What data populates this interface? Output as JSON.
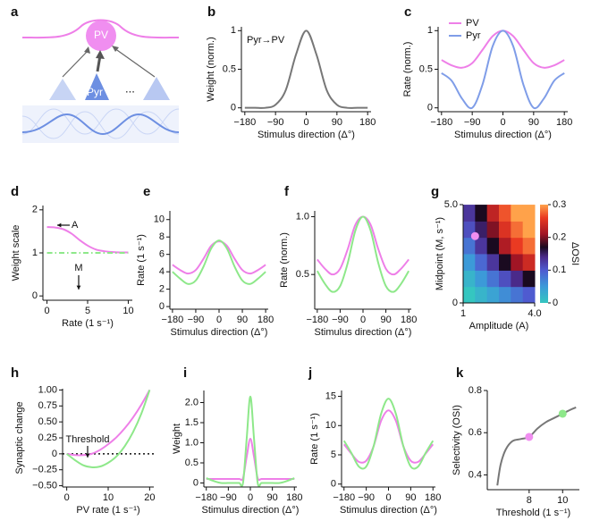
{
  "schematic": {
    "label": "a",
    "top_node": "PV",
    "input_node": "Pyr",
    "ellipsis": "..."
  },
  "chart_data": [
    {
      "type": "line",
      "label": "b",
      "annotations": [
        "Pyr→PV"
      ],
      "xlabel": "Stimulus direction (Δ°)",
      "ylabel": "Weight (norm.)",
      "x": [
        -180,
        -150,
        -120,
        -90,
        -60,
        -30,
        0,
        30,
        60,
        90,
        120,
        150,
        180
      ],
      "xlim": [
        -190,
        190
      ],
      "xticks": [
        {
          "value": -180,
          "label": "−180"
        },
        {
          "value": -90,
          "label": "−90"
        },
        0,
        90,
        180
      ],
      "ylim": [
        -0.05,
        1.05
      ],
      "yticks": [
        0,
        0.5,
        1
      ],
      "series": [
        {
          "color": "#777777",
          "values": [
            0,
            0,
            0,
            0.04,
            0.23,
            0.69,
            1,
            0.69,
            0.23,
            0.04,
            0,
            0,
            0
          ]
        }
      ]
    },
    {
      "type": "line",
      "label": "c",
      "xlabel": "Stimulus direction (Δ°)",
      "ylabel": "Rate (norm.)",
      "legend": "upper left",
      "x": [
        -180,
        -150,
        -120,
        -90,
        -60,
        -30,
        0,
        30,
        60,
        90,
        120,
        150,
        180
      ],
      "xlim": [
        -190,
        190
      ],
      "xticks": [
        {
          "value": -180,
          "label": "−180"
        },
        {
          "value": -90,
          "label": "−90"
        },
        0,
        90,
        180
      ],
      "ylim": [
        -0.05,
        1.05
      ],
      "yticks": [
        0,
        0.5,
        1
      ],
      "series": [
        {
          "name": "PV",
          "color": "#ee7fe8",
          "values": [
            0.62,
            0.55,
            0.52,
            0.58,
            0.75,
            0.93,
            1,
            0.93,
            0.75,
            0.58,
            0.52,
            0.55,
            0.62
          ]
        },
        {
          "name": "Pyr",
          "color": "#7f9de8",
          "values": [
            0.45,
            0.35,
            0.12,
            0,
            0.3,
            0.8,
            1,
            0.8,
            0.3,
            0,
            0.12,
            0.35,
            0.45
          ]
        }
      ]
    },
    {
      "type": "line",
      "label": "d",
      "annotations": [
        "A",
        "M"
      ],
      "xlabel": "Rate (1 s⁻¹)",
      "ylabel": "Weight scale",
      "x": [
        0,
        1,
        2,
        3,
        4,
        5,
        6,
        7,
        8,
        9,
        10
      ],
      "xlim": [
        -0.5,
        10.5
      ],
      "xticks": [
        0,
        5,
        10
      ],
      "ylim": [
        -0.1,
        2.1
      ],
      "yticks": [
        0,
        1,
        2
      ],
      "series": [
        {
          "color": "#ee7fe8",
          "values": [
            1.6,
            1.59,
            1.55,
            1.45,
            1.3,
            1.17,
            1.08,
            1.04,
            1.02,
            1.01,
            1.01
          ]
        },
        {
          "color": "#8ee88a",
          "dash": "dashdot",
          "values": [
            1,
            1,
            1,
            1,
            1,
            1,
            1,
            1,
            1,
            1,
            1
          ]
        }
      ]
    },
    {
      "type": "line",
      "label": "e",
      "xlabel": "Stimulus direction (Δ°)",
      "ylabel": "Rate (1 s⁻¹)",
      "x": [
        -180,
        -150,
        -120,
        -90,
        -60,
        -30,
        0,
        30,
        60,
        90,
        120,
        150,
        180
      ],
      "xlim": [
        -190,
        190
      ],
      "xticks": [
        {
          "value": -180,
          "label": "−180"
        },
        {
          "value": -90,
          "label": "−90"
        },
        0,
        90,
        180
      ],
      "ylim": [
        -0.3,
        11
      ],
      "yticks": [
        0,
        2,
        4,
        6,
        8,
        10
      ],
      "series": [
        {
          "color": "#ee7fe8",
          "values": [
            4.8,
            4.2,
            3.8,
            4.2,
            5.5,
            7.0,
            7.5,
            7.0,
            5.5,
            4.2,
            3.8,
            4.2,
            4.8
          ]
        },
        {
          "color": "#8ee88a",
          "values": [
            4.0,
            3.2,
            2.6,
            3.0,
            4.6,
            6.7,
            7.6,
            6.7,
            4.6,
            3.0,
            2.6,
            3.2,
            4.0
          ]
        }
      ]
    },
    {
      "type": "line",
      "label": "f",
      "xlabel": "Stimulus direction (Δ°)",
      "ylabel": "Rate (norm.)",
      "x": [
        -180,
        -150,
        -120,
        -90,
        -60,
        -30,
        0,
        30,
        60,
        90,
        120,
        150,
        180
      ],
      "xlim": [
        -190,
        190
      ],
      "xticks": [
        {
          "value": -180,
          "label": "−180"
        },
        {
          "value": -90,
          "label": "−90"
        },
        0,
        90,
        180
      ],
      "ylim": [
        0.2,
        1.05
      ],
      "yticks": [
        0.5,
        {
          "value": 1,
          "label": "1.0"
        }
      ],
      "series": [
        {
          "color": "#ee7fe8",
          "values": [
            0.63,
            0.55,
            0.5,
            0.55,
            0.72,
            0.93,
            1,
            0.93,
            0.72,
            0.55,
            0.5,
            0.55,
            0.63
          ]
        },
        {
          "color": "#8ee88a",
          "values": [
            0.53,
            0.42,
            0.35,
            0.4,
            0.6,
            0.88,
            1,
            0.88,
            0.6,
            0.4,
            0.35,
            0.42,
            0.53
          ]
        }
      ]
    },
    {
      "type": "heatmap",
      "label": "g",
      "xlabel": "Amplitude (A)",
      "ylabel": "Midpoint (M, s⁻¹)",
      "colorbar_label": "ΔOSI",
      "x": [
        1.25,
        1.75,
        2.25,
        2.75,
        3.25,
        3.75
      ],
      "y": [
        0.42,
        1.25,
        2.08,
        2.92,
        3.75,
        4.58
      ],
      "xlim": [
        1,
        4
      ],
      "xticks": [
        1,
        {
          "value": 4,
          "label": "4.0"
        }
      ],
      "ylim": [
        0,
        5
      ],
      "yticks": [
        0,
        {
          "value": 5,
          "label": "5.0"
        }
      ],
      "clim": [
        0,
        0.3
      ],
      "cticks": [
        0,
        0.1,
        0.2,
        0.3
      ],
      "z": [
        [
          0.0,
          0.02,
          0.04,
          0.06,
          0.08,
          0.1
        ],
        [
          0.02,
          0.05,
          0.08,
          0.11,
          0.14,
          0.17
        ],
        [
          0.05,
          0.09,
          0.13,
          0.17,
          0.21,
          0.24
        ],
        [
          0.08,
          0.13,
          0.17,
          0.22,
          0.26,
          0.28
        ],
        [
          0.11,
          0.15,
          0.2,
          0.25,
          0.28,
          0.3
        ],
        [
          0.13,
          0.17,
          0.23,
          0.27,
          0.3,
          0.3
        ]
      ],
      "markers": [
        {
          "x": 1.5,
          "y": 3.4,
          "color": "#f08ef0"
        }
      ]
    },
    {
      "type": "line",
      "label": "h",
      "annotations": [
        "Threshold"
      ],
      "xlabel": "PV rate (1 s⁻¹)",
      "ylabel": "Synaptic change",
      "reference_line": 0,
      "x": [
        0,
        2,
        4,
        6,
        8,
        10,
        12,
        14,
        16,
        18,
        20
      ],
      "xlim": [
        -1,
        21
      ],
      "xticks": [
        0,
        10,
        20
      ],
      "ylim": [
        -0.52,
        1.02
      ],
      "yticks": [
        {
          "value": -0.5,
          "label": "−0.50"
        },
        {
          "value": -0.25,
          "label": "−0.25"
        },
        0,
        0.25,
        {
          "value": 0.5,
          "label": "0.50"
        },
        0.75,
        {
          "value": 1,
          "label": "1.00"
        }
      ],
      "series": [
        {
          "color": "#ee7fe8",
          "values": [
            0,
            -0.02,
            -0.02,
            0,
            0.06,
            0.15,
            0.26,
            0.4,
            0.57,
            0.77,
            1
          ]
        },
        {
          "color": "#8ee88a",
          "values": [
            0,
            -0.1,
            -0.18,
            -0.21,
            -0.2,
            -0.14,
            -0.04,
            0.12,
            0.34,
            0.63,
            1
          ]
        }
      ]
    },
    {
      "type": "line",
      "label": "i",
      "xlabel": "Stimulus direction (Δ°)",
      "ylabel": "Weight",
      "x": [
        -180,
        -150,
        -120,
        -90,
        -60,
        -45,
        -30,
        -15,
        0,
        15,
        30,
        45,
        60,
        90,
        120,
        150,
        180
      ],
      "xlim": [
        -190,
        190
      ],
      "xticks": [
        {
          "value": -180,
          "label": "−180"
        },
        {
          "value": -90,
          "label": "−90"
        },
        0,
        90,
        180
      ],
      "ylim": [
        -0.1,
        2.3
      ],
      "yticks": [
        0,
        0.5,
        {
          "value": 1,
          "label": "1.0"
        },
        1.5,
        {
          "value": 2,
          "label": "2.0"
        }
      ],
      "series": [
        {
          "color": "#ee7fe8",
          "values": [
            0.1,
            0.1,
            0.1,
            0.1,
            0.1,
            0.1,
            0.12,
            0.65,
            1.1,
            0.65,
            0.12,
            0.1,
            0.1,
            0.1,
            0.1,
            0.1,
            0.1
          ]
        },
        {
          "color": "#8ee88a",
          "values": [
            0.12,
            0.05,
            0,
            0,
            0,
            0,
            0,
            1.1,
            2.15,
            1.1,
            0,
            0,
            0,
            0,
            0,
            0.05,
            0.12
          ]
        }
      ]
    },
    {
      "type": "line",
      "label": "j",
      "xlabel": "Stimulus direction (Δ°)",
      "ylabel": "Rate (1 s⁻¹)",
      "x": [
        -180,
        -150,
        -120,
        -90,
        -60,
        -30,
        0,
        30,
        60,
        90,
        120,
        150,
        180
      ],
      "xlim": [
        -190,
        190
      ],
      "xticks": [
        {
          "value": -180,
          "label": "−180"
        },
        {
          "value": -90,
          "label": "−90"
        },
        0,
        90,
        180
      ],
      "ylim": [
        -0.5,
        16
      ],
      "yticks": [
        0,
        5,
        10,
        15
      ],
      "series": [
        {
          "color": "#ee7fe8",
          "values": [
            6.8,
            5.2,
            3.8,
            4.0,
            6.5,
            10.8,
            12.6,
            10.8,
            6.5,
            4.0,
            3.8,
            5.2,
            6.8
          ]
        },
        {
          "color": "#8ee88a",
          "values": [
            7.4,
            5.3,
            3.0,
            3.0,
            6.5,
            12.0,
            14.6,
            12.0,
            6.5,
            3.0,
            3.0,
            5.3,
            7.4
          ]
        }
      ]
    },
    {
      "type": "line",
      "label": "k",
      "xlabel": "Threshold (1 s⁻¹)",
      "ylabel": "Selectivity (OSI)",
      "x": [
        6.1,
        6.3,
        6.6,
        7,
        7.5,
        8,
        8.5,
        9,
        9.5,
        10,
        10.5,
        10.8
      ],
      "xlim": [
        5.5,
        11
      ],
      "xticks": [
        8,
        10
      ],
      "ylim": [
        0.33,
        0.8
      ],
      "yticks": [
        0.4,
        0.6,
        0.8
      ],
      "series": [
        {
          "color": "#777777",
          "values": [
            0.35,
            0.45,
            0.52,
            0.56,
            0.57,
            0.58,
            0.62,
            0.65,
            0.67,
            0.69,
            0.71,
            0.72
          ]
        }
      ],
      "markers": [
        {
          "x": 8,
          "y": 0.58,
          "color": "#f08ef0"
        },
        {
          "x": 10,
          "y": 0.69,
          "color": "#8ee88a"
        }
      ]
    }
  ]
}
